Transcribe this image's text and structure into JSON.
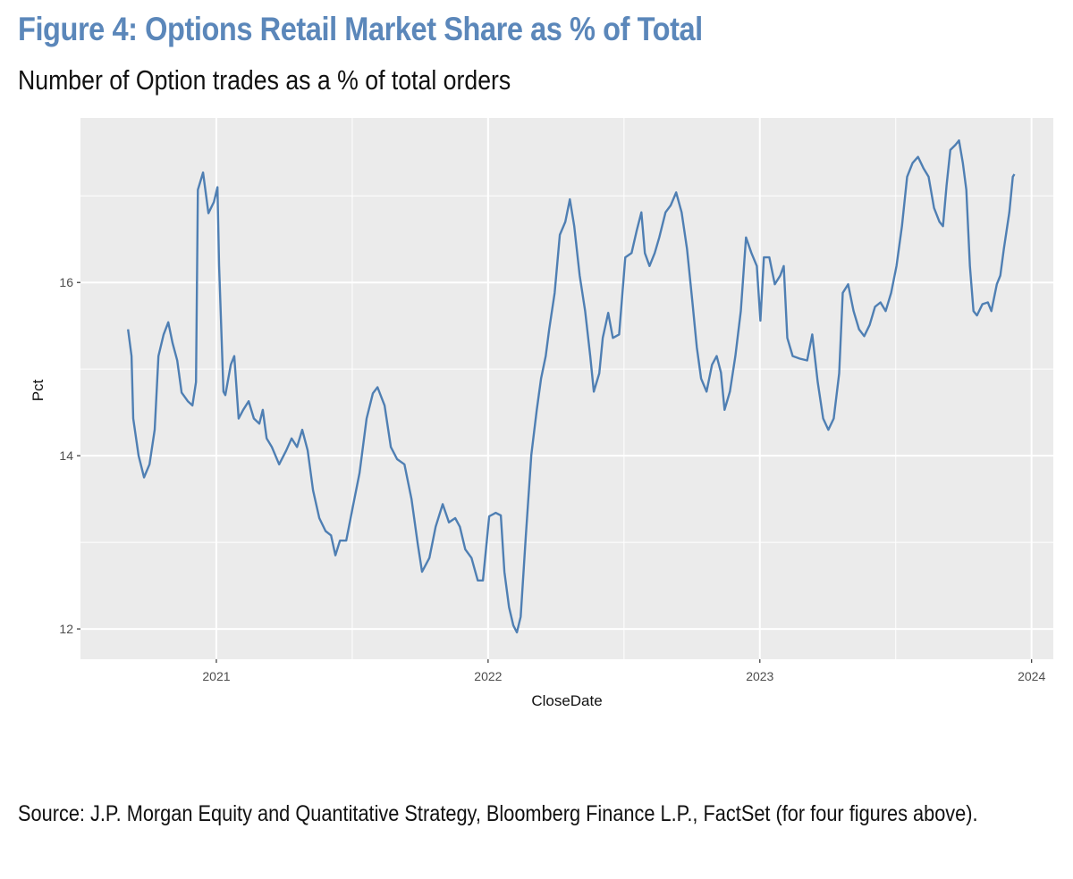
{
  "figure": {
    "title": "Figure 4: Options Retail Market Share as % of Total",
    "subtitle": "Number of Option trades as a % of total orders",
    "source": "Source: J.P. Morgan Equity and Quantitative Strategy, Bloomberg Finance L.P., FactSet (for four figures above)."
  },
  "colors": {
    "title": "#5b87ba",
    "line": "#4f7fb3",
    "panel_bg": "#ebebeb",
    "grid": "#ffffff"
  },
  "chart_data": {
    "type": "line",
    "title": "Figure 4: Options Retail Market Share as % of Total",
    "subtitle": "Number of Option trades as a % of total orders",
    "xlabel": "CloseDate",
    "ylabel": "Pct",
    "x_ticks": [
      "2021",
      "2022",
      "2023",
      "2024"
    ],
    "x_tick_values": [
      2021,
      2022,
      2023,
      2024
    ],
    "y_ticks": [
      "12",
      "14",
      "16"
    ],
    "y_tick_values": [
      12,
      14,
      16
    ],
    "xlim": [
      2020.5,
      2024.08
    ],
    "ylim": [
      11.65,
      17.9
    ],
    "grid": true,
    "legend": "none",
    "series": [
      {
        "name": "Pct",
        "points": [
          [
            2020.675,
            15.46
          ],
          [
            2020.688,
            15.15
          ],
          [
            2020.694,
            14.43
          ],
          [
            2020.714,
            14.0
          ],
          [
            2020.734,
            13.75
          ],
          [
            2020.754,
            13.9
          ],
          [
            2020.773,
            14.3
          ],
          [
            2020.787,
            15.15
          ],
          [
            2020.806,
            15.4
          ],
          [
            2020.823,
            15.54
          ],
          [
            2020.839,
            15.3
          ],
          [
            2020.856,
            15.1
          ],
          [
            2020.872,
            14.73
          ],
          [
            2020.895,
            14.63
          ],
          [
            2020.912,
            14.58
          ],
          [
            2020.925,
            14.85
          ],
          [
            2020.932,
            17.07
          ],
          [
            2020.951,
            17.27
          ],
          [
            2020.971,
            16.8
          ],
          [
            2020.991,
            16.93
          ],
          [
            2021.004,
            17.1
          ],
          [
            2021.01,
            16.2
          ],
          [
            2021.026,
            14.74
          ],
          [
            2021.033,
            14.7
          ],
          [
            2021.053,
            15.05
          ],
          [
            2021.066,
            15.15
          ],
          [
            2021.082,
            14.43
          ],
          [
            2021.099,
            14.53
          ],
          [
            2021.119,
            14.63
          ],
          [
            2021.138,
            14.43
          ],
          [
            2021.158,
            14.37
          ],
          [
            2021.171,
            14.53
          ],
          [
            2021.185,
            14.2
          ],
          [
            2021.204,
            14.1
          ],
          [
            2021.231,
            13.9
          ],
          [
            2021.257,
            14.06
          ],
          [
            2021.277,
            14.2
          ],
          [
            2021.297,
            14.1
          ],
          [
            2021.316,
            14.3
          ],
          [
            2021.336,
            14.06
          ],
          [
            2021.356,
            13.6
          ],
          [
            2021.379,
            13.28
          ],
          [
            2021.402,
            13.13
          ],
          [
            2021.422,
            13.08
          ],
          [
            2021.438,
            12.85
          ],
          [
            2021.455,
            13.02
          ],
          [
            2021.478,
            13.02
          ],
          [
            2021.501,
            13.39
          ],
          [
            2021.527,
            13.8
          ],
          [
            2021.553,
            14.43
          ],
          [
            2021.576,
            14.72
          ],
          [
            2021.593,
            14.79
          ],
          [
            2021.619,
            14.58
          ],
          [
            2021.642,
            14.1
          ],
          [
            2021.665,
            13.96
          ],
          [
            2021.692,
            13.9
          ],
          [
            2021.718,
            13.5
          ],
          [
            2021.741,
            12.98
          ],
          [
            2021.757,
            12.66
          ],
          [
            2021.784,
            12.82
          ],
          [
            2021.807,
            13.18
          ],
          [
            2021.833,
            13.44
          ],
          [
            2021.856,
            13.23
          ],
          [
            2021.879,
            13.28
          ],
          [
            2021.896,
            13.18
          ],
          [
            2021.916,
            12.92
          ],
          [
            2021.939,
            12.82
          ],
          [
            2021.962,
            12.56
          ],
          [
            2021.981,
            12.56
          ],
          [
            2022.004,
            13.3
          ],
          [
            2022.028,
            13.34
          ],
          [
            2022.047,
            13.31
          ],
          [
            2022.06,
            12.66
          ],
          [
            2022.077,
            12.25
          ],
          [
            2022.093,
            12.04
          ],
          [
            2022.106,
            11.96
          ],
          [
            2022.12,
            12.14
          ],
          [
            2022.139,
            13.08
          ],
          [
            2022.159,
            14.01
          ],
          [
            2022.179,
            14.53
          ],
          [
            2022.195,
            14.89
          ],
          [
            2022.212,
            15.15
          ],
          [
            2022.225,
            15.46
          ],
          [
            2022.245,
            15.88
          ],
          [
            2022.264,
            16.55
          ],
          [
            2022.284,
            16.7
          ],
          [
            2022.301,
            16.96
          ],
          [
            2022.317,
            16.65
          ],
          [
            2022.337,
            16.08
          ],
          [
            2022.357,
            15.67
          ],
          [
            2022.376,
            15.15
          ],
          [
            2022.389,
            14.74
          ],
          [
            2022.409,
            14.95
          ],
          [
            2022.422,
            15.36
          ],
          [
            2022.442,
            15.65
          ],
          [
            2022.459,
            15.36
          ],
          [
            2022.482,
            15.4
          ],
          [
            2022.505,
            16.29
          ],
          [
            2022.528,
            16.34
          ],
          [
            2022.547,
            16.6
          ],
          [
            2022.564,
            16.81
          ],
          [
            2022.577,
            16.34
          ],
          [
            2022.594,
            16.19
          ],
          [
            2022.613,
            16.34
          ],
          [
            2022.63,
            16.52
          ],
          [
            2022.653,
            16.81
          ],
          [
            2022.672,
            16.89
          ],
          [
            2022.692,
            17.04
          ],
          [
            2022.712,
            16.81
          ],
          [
            2022.732,
            16.39
          ],
          [
            2022.752,
            15.77
          ],
          [
            2022.768,
            15.25
          ],
          [
            2022.784,
            14.89
          ],
          [
            2022.804,
            14.74
          ],
          [
            2022.824,
            15.05
          ],
          [
            2022.841,
            15.15
          ],
          [
            2022.857,
            14.96
          ],
          [
            2022.87,
            14.53
          ],
          [
            2022.89,
            14.74
          ],
          [
            2022.91,
            15.15
          ],
          [
            2022.93,
            15.67
          ],
          [
            2022.949,
            16.52
          ],
          [
            2022.969,
            16.34
          ],
          [
            2022.989,
            16.19
          ],
          [
            2023.002,
            15.56
          ],
          [
            2023.015,
            16.29
          ],
          [
            2023.035,
            16.29
          ],
          [
            2023.055,
            15.98
          ],
          [
            2023.075,
            16.08
          ],
          [
            2023.088,
            16.19
          ],
          [
            2023.101,
            15.36
          ],
          [
            2023.121,
            15.15
          ],
          [
            2023.147,
            15.12
          ],
          [
            2023.174,
            15.1
          ],
          [
            2023.193,
            15.4
          ],
          [
            2023.213,
            14.85
          ],
          [
            2023.233,
            14.43
          ],
          [
            2023.252,
            14.3
          ],
          [
            2023.272,
            14.43
          ],
          [
            2023.292,
            14.95
          ],
          [
            2023.305,
            15.88
          ],
          [
            2023.325,
            15.98
          ],
          [
            2023.345,
            15.67
          ],
          [
            2023.365,
            15.46
          ],
          [
            2023.384,
            15.38
          ],
          [
            2023.404,
            15.51
          ],
          [
            2023.424,
            15.72
          ],
          [
            2023.444,
            15.77
          ],
          [
            2023.463,
            15.67
          ],
          [
            2023.483,
            15.88
          ],
          [
            2023.503,
            16.19
          ],
          [
            2023.523,
            16.65
          ],
          [
            2023.542,
            17.22
          ],
          [
            2023.562,
            17.38
          ],
          [
            2023.582,
            17.45
          ],
          [
            2023.602,
            17.32
          ],
          [
            2023.621,
            17.22
          ],
          [
            2023.641,
            16.86
          ],
          [
            2023.661,
            16.7
          ],
          [
            2023.674,
            16.65
          ],
          [
            2023.687,
            17.12
          ],
          [
            2023.701,
            17.53
          ],
          [
            2023.72,
            17.59
          ],
          [
            2023.733,
            17.64
          ],
          [
            2023.747,
            17.38
          ],
          [
            2023.76,
            17.07
          ],
          [
            2023.773,
            16.19
          ],
          [
            2023.786,
            15.67
          ],
          [
            2023.799,
            15.62
          ],
          [
            2023.819,
            15.75
          ],
          [
            2023.839,
            15.77
          ],
          [
            2023.852,
            15.67
          ],
          [
            2023.872,
            15.98
          ],
          [
            2023.885,
            16.08
          ],
          [
            2023.898,
            16.39
          ],
          [
            2023.918,
            16.81
          ],
          [
            2023.931,
            17.22
          ],
          [
            2023.937,
            17.25
          ]
        ]
      }
    ]
  }
}
